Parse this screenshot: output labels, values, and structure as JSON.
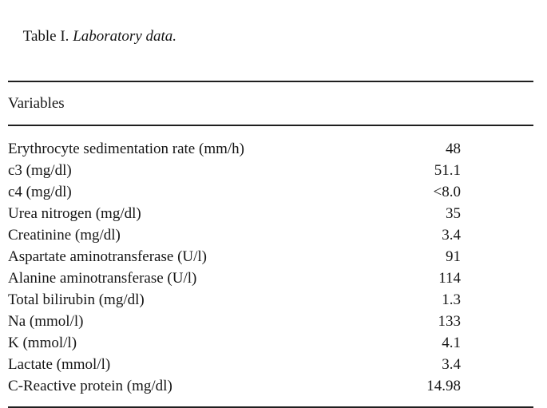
{
  "table": {
    "title_prefix": "Table I. ",
    "title_emphasis": "Laboratory data.",
    "column_header": "Variables",
    "rows": [
      {
        "label": "Erythrocyte sedimentation rate (mm/h)",
        "value": "48"
      },
      {
        "label": "c3 (mg/dl)",
        "value": "51.1"
      },
      {
        "label": "c4 (mg/dl)",
        "value": "<8.0"
      },
      {
        "label": "Urea nitrogen (mg/dl)",
        "value": "35"
      },
      {
        "label": "Creatinine (mg/dl)",
        "value": "3.4"
      },
      {
        "label": "Aspartate aminotransferase (U/l)",
        "value": "91"
      },
      {
        "label": "Alanine aminotransferase (U/l)",
        "value": "114"
      },
      {
        "label": "Total bilirubin (mg/dl)",
        "value": "1.3"
      },
      {
        "label": "Na (mmol/l)",
        "value": "133"
      },
      {
        "label": "K (mmol/l)",
        "value": "4.1"
      },
      {
        "label": "Lactate (mmol/l)",
        "value": "3.4"
      },
      {
        "label": "C-Reactive protein (mg/dl)",
        "value": "14.98"
      }
    ],
    "colors": {
      "text": "#161616",
      "rule": "#1f1f1f",
      "background": "#ffffff"
    }
  }
}
